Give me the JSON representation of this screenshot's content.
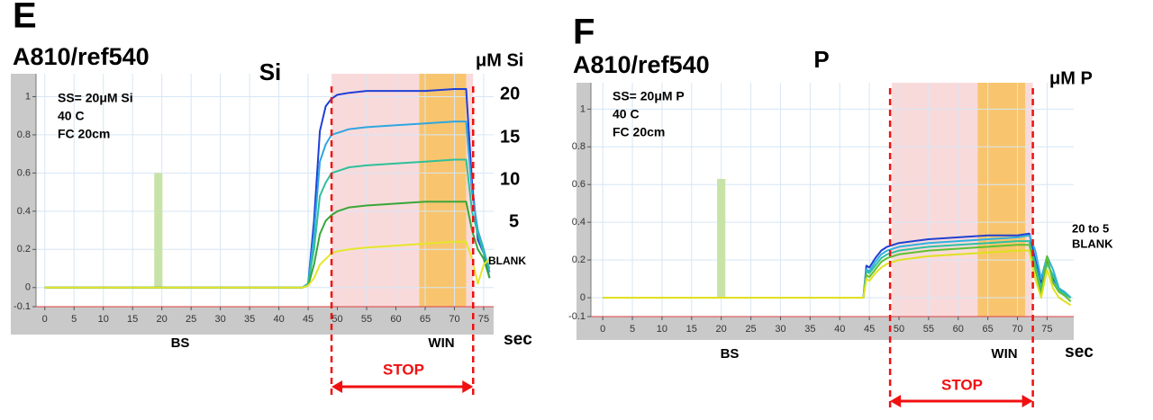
{
  "chart_data": [
    {
      "type": "line",
      "panel": "E",
      "title": "A810/ref540",
      "element": "Si",
      "unit_label": "μM Si",
      "annotations": [
        "SS= 20μM Si",
        "40 C",
        "FC 20cm"
      ],
      "bs_label": "BS",
      "win_label": "WIN",
      "x_unit": "sec",
      "stop_label": "STOP",
      "xlim": [
        -1.5,
        76.7
      ],
      "ylim": [
        -0.1,
        1.12
      ],
      "xticks": [
        0,
        5,
        10,
        15,
        20,
        25,
        30,
        35,
        40,
        45,
        50,
        55,
        60,
        65,
        70,
        75
      ],
      "yticks": [
        -0.1,
        0,
        0.2,
        0.4,
        0.6,
        0.8,
        1
      ],
      "grid": true,
      "bands": [
        {
          "x0": 49,
          "x1": 73.2,
          "color": "#f9dadb"
        },
        {
          "x0": 64,
          "x1": 72,
          "color": "#f8c56e"
        }
      ],
      "bs_bar": {
        "x0": 18.7,
        "x1": 20.1,
        "height": 0.6,
        "color": "#c8e3a8"
      },
      "stop_lines": [
        49,
        73.2
      ],
      "x": [
        0,
        10,
        20,
        30,
        40,
        44,
        45,
        46,
        47,
        48,
        49,
        50,
        52,
        55,
        60,
        65,
        70,
        72,
        73,
        74,
        75,
        76
      ],
      "series": [
        {
          "name": "20",
          "color": "#1f3fd6",
          "values": [
            0,
            0,
            0,
            0,
            0,
            0,
            0.02,
            0.35,
            0.82,
            0.95,
            0.99,
            1.01,
            1.02,
            1.03,
            1.03,
            1.03,
            1.04,
            1.04,
            0.55,
            0.25,
            0.18,
            0.05
          ]
        },
        {
          "name": "15",
          "color": "#2fa6e0",
          "values": [
            0,
            0,
            0,
            0,
            0,
            0,
            0.02,
            0.28,
            0.66,
            0.75,
            0.8,
            0.81,
            0.83,
            0.84,
            0.85,
            0.86,
            0.87,
            0.87,
            0.5,
            0.3,
            0.2,
            0.08
          ]
        },
        {
          "name": "10",
          "color": "#2fbf9a",
          "values": [
            0,
            0,
            0,
            0,
            0,
            0,
            0.02,
            0.2,
            0.48,
            0.55,
            0.6,
            0.61,
            0.63,
            0.64,
            0.65,
            0.66,
            0.67,
            0.67,
            0.4,
            0.28,
            0.18,
            0.1
          ]
        },
        {
          "name": "5",
          "color": "#3aa63a",
          "values": [
            0,
            0,
            0,
            0,
            0,
            0,
            0.01,
            0.12,
            0.28,
            0.35,
            0.38,
            0.4,
            0.42,
            0.43,
            0.44,
            0.45,
            0.45,
            0.45,
            0.3,
            0.2,
            0.15,
            0.05
          ]
        },
        {
          "name": "BLANK",
          "color": "#e6e62a",
          "values": [
            0,
            0,
            0,
            0,
            0,
            0,
            0.01,
            0.05,
            0.12,
            0.15,
            0.18,
            0.19,
            0.2,
            0.21,
            0.22,
            0.23,
            0.24,
            0.24,
            0.15,
            0.02,
            0.12,
            0.15
          ]
        }
      ]
    },
    {
      "type": "line",
      "panel": "F",
      "title": "A810/ref540",
      "element": "P",
      "unit_label": "μM P",
      "annotations": [
        "SS= 20μM P",
        "40 C",
        "FC 20cm"
      ],
      "bs_label": "BS",
      "win_label": "WIN",
      "x_unit": "sec",
      "stop_label": "STOP",
      "side_labels": [
        "20 to 5",
        "BLANK"
      ],
      "xlim": [
        -2,
        79.5
      ],
      "ylim": [
        -0.1,
        1.14
      ],
      "xticks": [
        0,
        5,
        10,
        15,
        20,
        25,
        30,
        35,
        40,
        45,
        50,
        55,
        60,
        65,
        70,
        75
      ],
      "yticks": [
        -0.1,
        0,
        0.2,
        0.4,
        0.6,
        0.8,
        1
      ],
      "grid": true,
      "bands": [
        {
          "x0": 48.8,
          "x1": 72.6,
          "color": "#f9dadb"
        },
        {
          "x0": 63.3,
          "x1": 71.3,
          "color": "#f8c56e"
        }
      ],
      "bs_bar": {
        "x0": 19.3,
        "x1": 20.7,
        "height": 0.63,
        "color": "#c8e3a8"
      },
      "stop_lines": [
        48.5,
        72.6
      ],
      "x": [
        0,
        10,
        20,
        30,
        40,
        44,
        44.5,
        45,
        46,
        47,
        48,
        50,
        55,
        60,
        65,
        70,
        72,
        73,
        74,
        75,
        76,
        77,
        78,
        79
      ],
      "series": [
        {
          "color": "#2040d0",
          "values": [
            0,
            0,
            0,
            0,
            0,
            0,
            0.17,
            0.16,
            0.21,
            0.25,
            0.27,
            0.29,
            0.31,
            0.32,
            0.33,
            0.33,
            0.34,
            0.2,
            0.08,
            0.2,
            0.1,
            0.05,
            0.02,
            0
          ]
        },
        {
          "color": "#30b0e0",
          "values": [
            0,
            0,
            0,
            0,
            0,
            0,
            0.15,
            0.14,
            0.19,
            0.23,
            0.25,
            0.27,
            0.29,
            0.3,
            0.31,
            0.32,
            0.33,
            0.25,
            0.1,
            0.22,
            0.15,
            0.05,
            0.03,
            0
          ]
        },
        {
          "color": "#30c0a0",
          "values": [
            0,
            0,
            0,
            0,
            0,
            0,
            0.14,
            0.13,
            0.17,
            0.21,
            0.23,
            0.25,
            0.27,
            0.28,
            0.29,
            0.3,
            0.3,
            0.18,
            0.05,
            0.18,
            0.12,
            0.04,
            0.02,
            0
          ]
        },
        {
          "color": "#60c030",
          "values": [
            0,
            0,
            0,
            0,
            0,
            0,
            0.12,
            0.11,
            0.15,
            0.19,
            0.21,
            0.23,
            0.25,
            0.26,
            0.27,
            0.28,
            0.28,
            0.15,
            0.02,
            0.22,
            0.08,
            0.03,
            0.01,
            -0.02
          ]
        },
        {
          "color": "#e0e020",
          "values": [
            0,
            0,
            0,
            0,
            0,
            0,
            0.1,
            0.09,
            0.13,
            0.16,
            0.18,
            0.2,
            0.22,
            0.23,
            0.24,
            0.25,
            0.25,
            0.1,
            0,
            0.15,
            0.05,
            0,
            -0.02,
            -0.04
          ]
        }
      ]
    }
  ]
}
